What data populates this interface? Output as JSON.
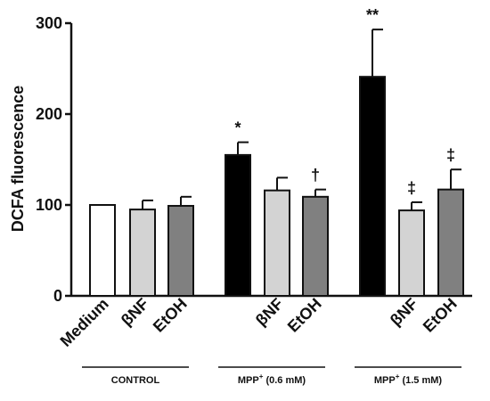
{
  "chart_data": {
    "type": "bar",
    "ylabel": "DCFA fluorescence",
    "xlabel": "",
    "title": "",
    "ylim": [
      0,
      300
    ],
    "yticks": [
      0,
      100,
      200,
      300
    ],
    "grid": false,
    "bars": [
      {
        "label": "Medium",
        "value": 100,
        "err": 0,
        "color": "#ffffff",
        "annotation": ""
      },
      {
        "label": "βNF",
        "value": 95,
        "err": 10,
        "color": "#d3d3d3",
        "annotation": ""
      },
      {
        "label": "EtOH",
        "value": 99,
        "err": 10,
        "color": "#808080",
        "annotation": ""
      },
      {
        "label": "",
        "value": 155,
        "err": 14,
        "color": "#000000",
        "annotation": "*"
      },
      {
        "label": "βNF",
        "value": 116,
        "err": 14,
        "color": "#d3d3d3",
        "annotation": ""
      },
      {
        "label": "EtOH",
        "value": 109,
        "err": 8,
        "color": "#808080",
        "annotation": "†"
      },
      {
        "label": "",
        "value": 241,
        "err": 52,
        "color": "#000000",
        "annotation": "**"
      },
      {
        "label": "βNF",
        "value": 94,
        "err": 9,
        "color": "#d3d3d3",
        "annotation": "‡"
      },
      {
        "label": "EtOH",
        "value": 117,
        "err": 22,
        "color": "#808080",
        "annotation": "‡"
      }
    ],
    "groups": [
      {
        "name": "CONTROL",
        "sup": "",
        "suffix": ""
      },
      {
        "name": "MPP",
        "sup": "+",
        "suffix": " (0.6 mM)"
      },
      {
        "name": "MPP",
        "sup": "+",
        "suffix": " (1.5 mM)"
      }
    ]
  }
}
